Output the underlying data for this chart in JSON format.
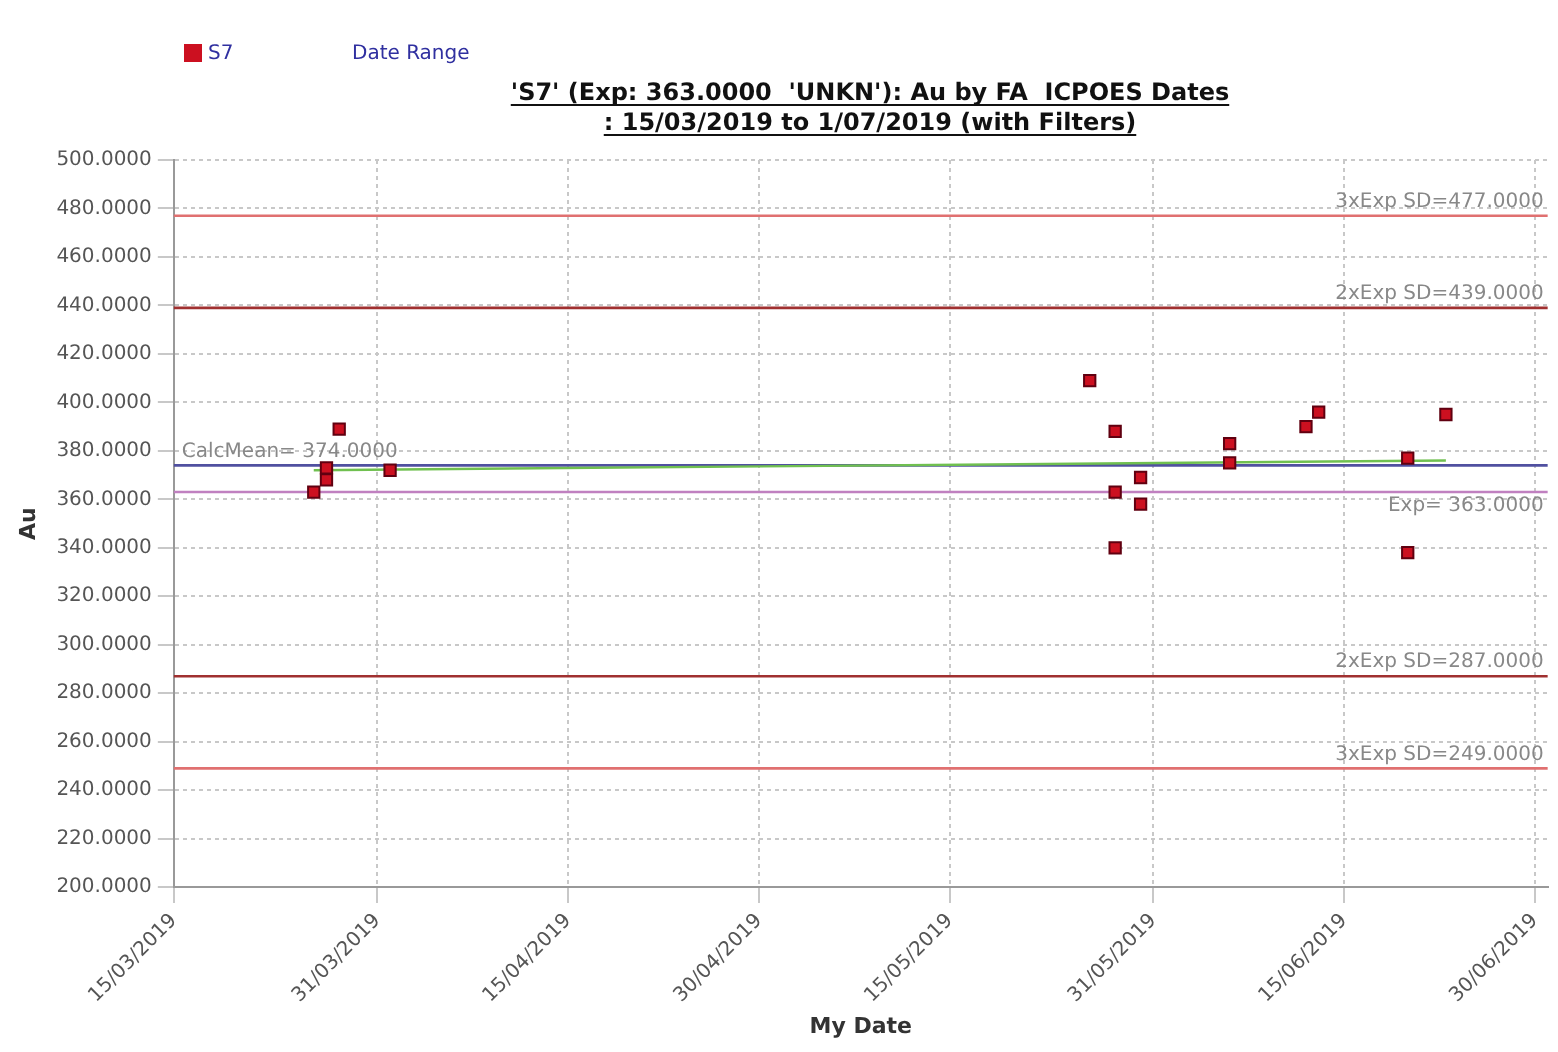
{
  "chart_data": {
    "type": "scatter",
    "title": "'S7' (Exp: 363.0000  'UNKN'): Au by FA  ICPOES Dates\n: 15/03/2019 to 1/07/2019 (with Filters)",
    "xlabel": "My Date",
    "ylabel": "Au",
    "x": [
      "2019-03-26",
      "2019-03-27",
      "2019-03-27",
      "2019-03-28",
      "2019-04-01",
      "2019-05-26",
      "2019-05-28",
      "2019-05-28",
      "2019-05-28",
      "2019-05-30",
      "2019-05-30",
      "2019-06-06",
      "2019-06-06",
      "2019-06-12",
      "2019-06-13",
      "2019-06-20",
      "2019-06-20",
      "2019-06-23"
    ],
    "series": [
      {
        "name": "S7",
        "color": "#cc1020",
        "marker": "square",
        "values": [
          363,
          373,
          368,
          389,
          372,
          409,
          388,
          363,
          340,
          369,
          358,
          383,
          375,
          390,
          396,
          377,
          338,
          395
        ]
      },
      {
        "type": "line",
        "marker": "none",
        "color": "#70c050",
        "x": [
          "2019-03-26",
          "2019-06-23"
        ],
        "values": [
          372,
          376
        ]
      }
    ],
    "xlim": [
      "2019-03-15",
      "2019-07-01"
    ],
    "xticks": [
      {
        "value": "2019-03-15",
        "label": "15/03/2019"
      },
      {
        "value": "2019-03-31",
        "label": "31/03/2019"
      },
      {
        "value": "2019-04-15",
        "label": "15/04/2019"
      },
      {
        "value": "2019-04-30",
        "label": "30/04/2019"
      },
      {
        "value": "2019-05-15",
        "label": "15/05/2019"
      },
      {
        "value": "2019-05-31",
        "label": "31/05/2019"
      },
      {
        "value": "2019-06-15",
        "label": "15/06/2019"
      },
      {
        "value": "2019-06-30",
        "label": "30/06/2019"
      }
    ],
    "ylim": [
      200,
      500
    ],
    "yticks": [
      {
        "value": 200,
        "label": "200.0000"
      },
      {
        "value": 220,
        "label": "220.0000"
      },
      {
        "value": 240,
        "label": "240.0000"
      },
      {
        "value": 260,
        "label": "260.0000"
      },
      {
        "value": 280,
        "label": "280.0000"
      },
      {
        "value": 300,
        "label": "300.0000"
      },
      {
        "value": 320,
        "label": "320.0000"
      },
      {
        "value": 340,
        "label": "340.0000"
      },
      {
        "value": 360,
        "label": "360.0000"
      },
      {
        "value": 380,
        "label": "380.0000"
      },
      {
        "value": 400,
        "label": "400.0000"
      },
      {
        "value": 420,
        "label": "420.0000"
      },
      {
        "value": 440,
        "label": "440.0000"
      },
      {
        "value": 460,
        "label": "460.0000"
      },
      {
        "value": 480,
        "label": "480.0000"
      },
      {
        "value": 500,
        "label": "500.0000"
      }
    ],
    "ref_lines": [
      {
        "axis": "y",
        "value": 477,
        "label": "3xExp SD=477.0000",
        "color": "#e07070"
      },
      {
        "axis": "y",
        "value": 439,
        "label": "2xExp SD=439.0000",
        "color": "#a03030"
      },
      {
        "axis": "y",
        "value": 374,
        "label": "CalcMean= 374.0000",
        "color": "#5050a0"
      },
      {
        "axis": "y",
        "value": 363,
        "label": "Exp= 363.0000",
        "color": "#c080c0"
      },
      {
        "axis": "y",
        "value": 287,
        "label": "2xExp SD=287.0000",
        "color": "#a03030"
      },
      {
        "axis": "y",
        "value": 249,
        "label": "3xExp SD=249.0000",
        "color": "#e07070"
      }
    ],
    "annotations": [
      "Date Range"
    ],
    "grid": true,
    "legend": "top left"
  }
}
